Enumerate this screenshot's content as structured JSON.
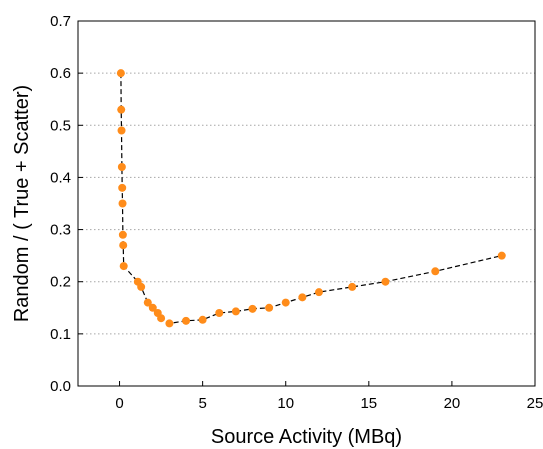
{
  "chart_data": {
    "type": "scatter",
    "xlabel": "Source Activity (MBq)",
    "ylabel": "Random / ( True + Scatter)",
    "xlim": [
      -2.5,
      25
    ],
    "ylim": [
      0,
      0.7
    ],
    "xticks": [
      0,
      5,
      10,
      15,
      20,
      25
    ],
    "yticks": [
      0.0,
      0.1,
      0.2,
      0.3,
      0.4,
      0.5,
      0.6,
      0.7
    ],
    "ytick_labels": [
      "0.0",
      "0.1",
      "0.2",
      "0.3",
      "0.4",
      "0.5",
      "0.6",
      "0.7"
    ],
    "xtick_labels": [
      "0",
      "5",
      "10",
      "15",
      "20",
      "25"
    ],
    "grid": "horizontal dotted",
    "legend": "none",
    "marker_color": "#ff8c1a",
    "line_color": "#000000",
    "line_style": "dashed",
    "series": [
      {
        "points": [
          [
            0.08,
            0.6
          ],
          [
            0.1,
            0.53
          ],
          [
            0.12,
            0.49
          ],
          [
            0.14,
            0.42
          ],
          [
            0.16,
            0.38
          ],
          [
            0.18,
            0.35
          ],
          [
            0.2,
            0.29
          ],
          [
            0.22,
            0.27
          ],
          [
            0.25,
            0.23
          ],
          [
            1.1,
            0.2
          ],
          [
            1.3,
            0.19
          ],
          [
            1.7,
            0.16
          ],
          [
            2.0,
            0.15
          ],
          [
            2.3,
            0.14
          ],
          [
            2.5,
            0.13
          ],
          [
            3.0,
            0.12
          ],
          [
            4.0,
            0.125
          ],
          [
            5.0,
            0.127
          ],
          [
            6.0,
            0.14
          ],
          [
            7.0,
            0.143
          ],
          [
            8.0,
            0.148
          ],
          [
            9.0,
            0.15
          ],
          [
            10.0,
            0.16
          ],
          [
            11.0,
            0.17
          ],
          [
            12.0,
            0.18
          ],
          [
            14.0,
            0.19
          ],
          [
            16.0,
            0.2
          ],
          [
            19.0,
            0.22
          ],
          [
            23.0,
            0.25
          ]
        ]
      }
    ]
  }
}
